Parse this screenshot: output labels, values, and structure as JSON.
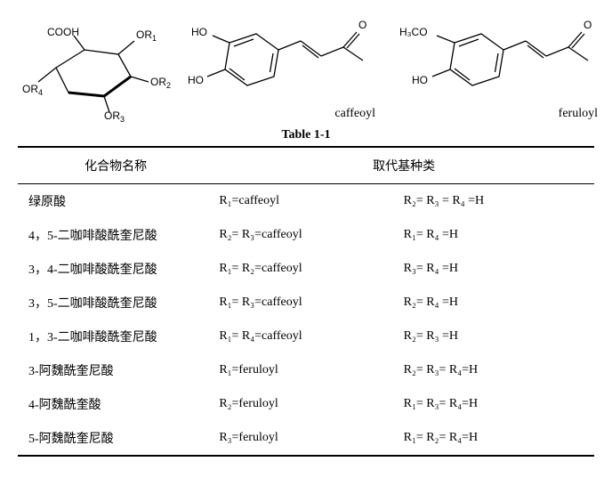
{
  "structures": {
    "quinic": {
      "labels": {
        "cooh": "COOH",
        "or1": "OR",
        "or2": "OR",
        "or3": "OR",
        "or4": "OR",
        "s1": "1",
        "s2": "2",
        "s3": "3",
        "s4": "4"
      }
    },
    "caffeoyl": {
      "name": "caffeoyl",
      "labels": {
        "ho1": "HO",
        "ho2": "HO",
        "o": "O"
      }
    },
    "feruloyl": {
      "name": "feruloyl",
      "labels": {
        "meo": "H₃CO",
        "ho": "HO",
        "o": "O"
      }
    }
  },
  "table": {
    "caption": "Table 1-1",
    "headers": {
      "name": "化合物名称",
      "subst": "取代基种类"
    },
    "rows": [
      {
        "name": "绿原酸",
        "sub1": "R₁=caffeoyl",
        "sub2": "R₂= R₃ = R₄ =H"
      },
      {
        "name": "4，5-二咖啡酸酰奎尼酸",
        "sub1": "R₂= R₃=caffeoyl",
        "sub2": "R₁= R₄ =H"
      },
      {
        "name": "3，4-二咖啡酸酰奎尼酸",
        "sub1": "R₁= R₂=caffeoyl",
        "sub2": "R₃= R₄ =H"
      },
      {
        "name": "3，5-二咖啡酸酰奎尼酸",
        "sub1": "R₁= R₃=caffeoyl",
        "sub2": "R₂= R₄ =H"
      },
      {
        "name": "1，3-二咖啡酸酰奎尼酸",
        "sub1": "R₁= R₄=caffeoyl",
        "sub2": "R₂= R₃ =H"
      },
      {
        "name": "3-阿魏酰奎尼酸",
        "sub1": "R₁=feruloyl",
        "sub2": "R₂= R₃= R₄=H"
      },
      {
        "name": "4-阿魏酰奎酸",
        "sub1": "R₂=feruloyl",
        "sub2": "R₁= R₃= R₄=H"
      },
      {
        "name": "5-阿魏酰奎尼酸",
        "sub1": "R₃=feruloyl",
        "sub2": "R₁= R₂= R₄=H"
      }
    ]
  },
  "style": {
    "stroke": "#000000",
    "stroke_width": 1.3,
    "font_size_struct": 12,
    "font_family_struct": "Arial, sans-serif"
  }
}
